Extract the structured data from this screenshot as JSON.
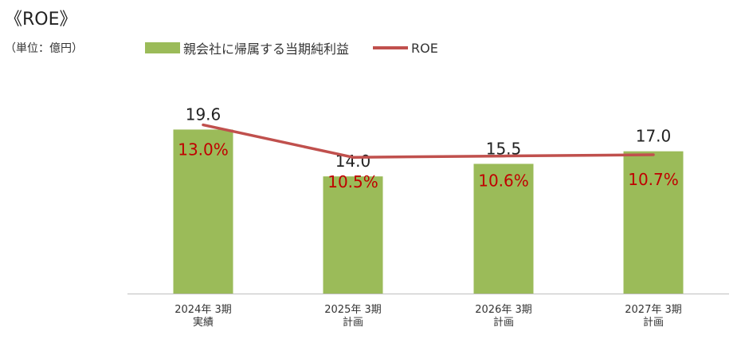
{
  "title": "《ROE》",
  "unit_label": "（単位：億円）",
  "colors": {
    "bar": "#9bbb59",
    "line": "#c0504d",
    "roe_label": "#c00000",
    "axis": "#bfbfbf"
  },
  "chart_data": {
    "type": "bar",
    "categories": [
      [
        "2024年 3期",
        "実績"
      ],
      [
        "2025年 3期",
        "計画"
      ],
      [
        "2026年 3期",
        "計画"
      ],
      [
        "2027年 3期",
        "計画"
      ]
    ],
    "series": [
      {
        "name": "親会社に帰属する当期純利益",
        "type": "bar",
        "values": [
          19.6,
          14.0,
          15.5,
          17.0
        ],
        "labels": [
          "19.6",
          "14.0",
          "15.5",
          "17.0"
        ]
      },
      {
        "name": "ROE",
        "type": "line",
        "values": [
          13.0,
          10.5,
          10.6,
          10.7
        ],
        "labels": [
          "13.0%",
          "10.5%",
          "10.6%",
          "10.7%"
        ]
      }
    ],
    "ylim": [
      0,
      24.5
    ],
    "y2lim": [
      0,
      15.8
    ],
    "legend": "top"
  }
}
